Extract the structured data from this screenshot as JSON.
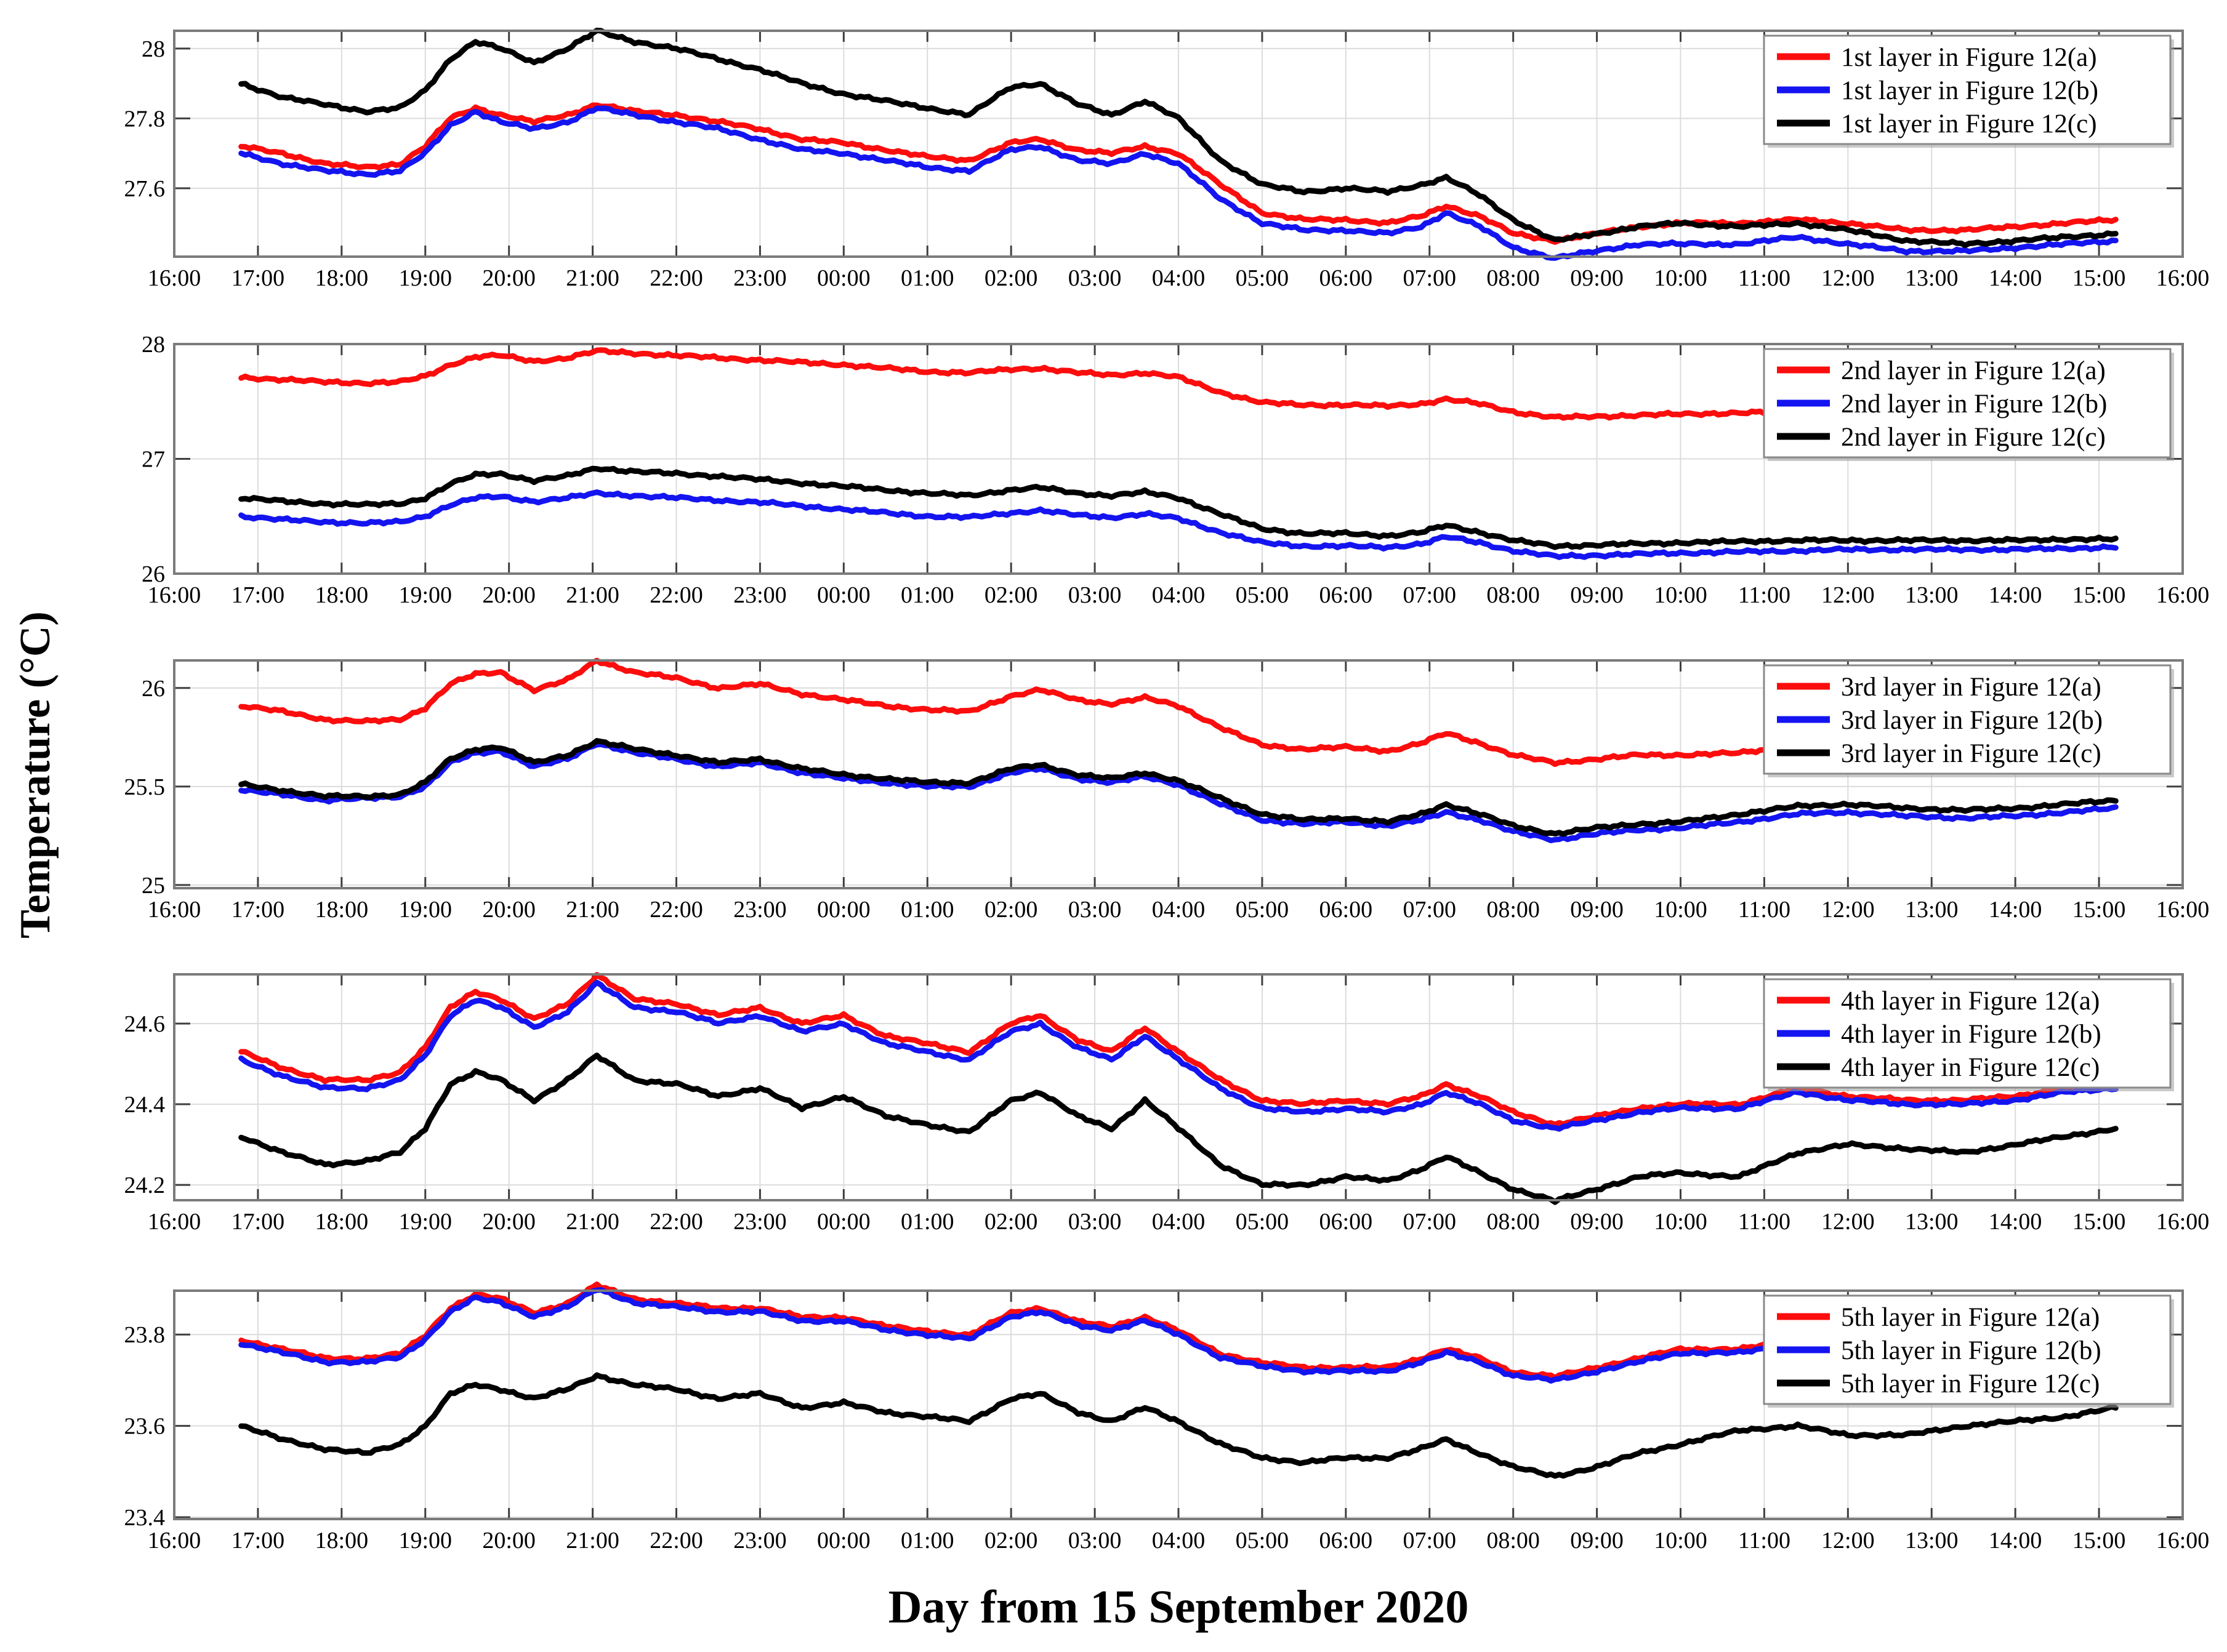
{
  "figure": {
    "ylabel": "Temperature (°C)",
    "xlabel": "Day from 15 September 2020",
    "x_tick_labels": [
      "16:00",
      "17:00",
      "18:00",
      "19:00",
      "20:00",
      "21:00",
      "22:00",
      "23:00",
      "00:00",
      "01:00",
      "02:00",
      "03:00",
      "04:00",
      "05:00",
      "06:00",
      "07:00",
      "08:00",
      "09:00",
      "10:00",
      "11:00",
      "12:00",
      "13:00",
      "14:00",
      "15:00",
      "16:00"
    ],
    "t_hours": [
      0.8,
      1.3,
      1.8,
      2.3,
      2.7,
      3.0,
      3.3,
      3.6,
      3.9,
      4.3,
      4.7,
      5.05,
      5.5,
      6.0,
      6.5,
      7.0,
      7.5,
      8.0,
      8.5,
      9.0,
      9.5,
      10.0,
      10.35,
      10.8,
      11.2,
      11.6,
      12.0,
      12.5,
      13.0,
      13.5,
      14.0,
      14.5,
      14.9,
      15.2,
      15.6,
      16.0,
      16.5,
      17.0,
      17.5,
      18.0,
      18.7,
      19.4,
      20.0,
      20.7,
      21.4,
      22.0,
      22.6,
      23.2
    ],
    "colors": {
      "red": "#fb0d0d",
      "blue": "#1414f0",
      "black": "#000000",
      "grid": "#dcdcdc",
      "axis_border": "#7b7b7b",
      "tick_stub": "#3f3f3f",
      "legend_border": "#8a8a8a",
      "legend_shadow": "#9e9e9e"
    }
  },
  "chart_data": [
    {
      "type": "line",
      "panel": "1st layer",
      "x_unit": "time of day, hourly from 16:00 15 Sep 2020 to 16:00 16 Sep 2020",
      "xlim": [
        0,
        24
      ],
      "ylim": [
        27.404,
        28.051
      ],
      "ytick_values": [
        28,
        27.8,
        27.6
      ],
      "ytick_labels": [
        "28",
        "27.8",
        "27.6"
      ],
      "legend": [
        "1st layer in  Figure 12(a)",
        "1st layer in  Figure 12(b)",
        "1st layer in  Figure 12(c)"
      ],
      "series": [
        {
          "name": "1st layer in Figure 12(a)",
          "color_key": "red",
          "values": [
            27.72,
            27.7,
            27.67,
            27.66,
            27.67,
            27.72,
            27.8,
            27.83,
            27.81,
            27.79,
            27.81,
            27.84,
            27.82,
            27.81,
            27.79,
            27.77,
            27.74,
            27.73,
            27.71,
            27.69,
            27.68,
            27.73,
            27.74,
            27.71,
            27.7,
            27.72,
            27.7,
            27.61,
            27.53,
            27.51,
            27.51,
            27.5,
            27.52,
            27.55,
            27.52,
            27.47,
            27.45,
            27.47,
            27.49,
            27.5,
            27.5,
            27.51,
            27.5,
            27.48,
            27.48,
            27.49,
            27.5,
            27.51
          ]
        },
        {
          "name": "1st layer in Figure 12(b)",
          "color_key": "blue",
          "values": [
            27.7,
            27.67,
            27.65,
            27.64,
            27.65,
            27.7,
            27.78,
            27.82,
            27.79,
            27.77,
            27.79,
            27.83,
            27.81,
            27.79,
            27.77,
            27.74,
            27.71,
            27.7,
            27.68,
            27.66,
            27.65,
            27.71,
            27.72,
            27.68,
            27.67,
            27.7,
            27.67,
            27.57,
            27.5,
            27.48,
            27.48,
            27.47,
            27.49,
            27.53,
            27.49,
            27.43,
            27.4,
            27.42,
            27.44,
            27.44,
            27.44,
            27.46,
            27.44,
            27.42,
            27.42,
            27.43,
            27.44,
            27.45
          ]
        },
        {
          "name": "1st layer in Figure 12(c)",
          "color_key": "black",
          "values": [
            27.9,
            27.86,
            27.84,
            27.82,
            27.83,
            27.88,
            27.97,
            28.02,
            28.0,
            27.96,
            28.0,
            28.05,
            28.02,
            28.0,
            27.97,
            27.94,
            27.9,
            27.87,
            27.85,
            27.83,
            27.81,
            27.89,
            27.9,
            27.84,
            27.81,
            27.85,
            27.8,
            27.68,
            27.61,
            27.59,
            27.6,
            27.59,
            27.61,
            27.63,
            27.58,
            27.51,
            27.45,
            27.47,
            27.49,
            27.5,
            27.49,
            27.5,
            27.48,
            27.45,
            27.44,
            27.45,
            27.46,
            27.47
          ]
        }
      ]
    },
    {
      "type": "line",
      "panel": "2nd layer",
      "x_unit": "time of day, hourly from 16:00 15 Sep 2020 to 16:00 16 Sep 2020",
      "xlim": [
        0,
        24
      ],
      "ylim": [
        26.0,
        28.0
      ],
      "ytick_values": [
        28,
        27,
        26
      ],
      "ytick_labels": [
        "28",
        "27",
        "26"
      ],
      "legend": [
        "2nd layer in  Figure 12(a)",
        "2nd layer in  Figure 12(b)",
        "2nd layer in  Figure 12(c)"
      ],
      "series": [
        {
          "name": "2nd layer in Figure 12(a)",
          "color_key": "red",
          "values": [
            27.71,
            27.69,
            27.67,
            27.66,
            27.67,
            27.72,
            27.82,
            27.89,
            27.9,
            27.85,
            27.88,
            27.94,
            27.92,
            27.9,
            27.88,
            27.86,
            27.84,
            27.82,
            27.79,
            27.76,
            27.75,
            27.78,
            27.79,
            27.75,
            27.73,
            27.75,
            27.71,
            27.58,
            27.49,
            27.47,
            27.47,
            27.46,
            27.48,
            27.52,
            27.48,
            27.41,
            27.36,
            27.37,
            27.38,
            27.39,
            27.4,
            27.41,
            27.42,
            27.42,
            27.43,
            27.43,
            27.44,
            27.44
          ]
        },
        {
          "name": "2nd layer in Figure 12(b)",
          "color_key": "blue",
          "values": [
            26.5,
            26.47,
            26.45,
            26.44,
            26.45,
            26.5,
            26.6,
            26.66,
            26.67,
            26.63,
            26.66,
            26.7,
            26.68,
            26.66,
            26.64,
            26.62,
            26.59,
            26.56,
            26.53,
            26.5,
            26.49,
            26.53,
            26.55,
            26.51,
            26.49,
            26.52,
            26.48,
            26.36,
            26.27,
            26.24,
            26.24,
            26.23,
            26.26,
            26.32,
            26.27,
            26.2,
            26.15,
            26.16,
            26.17,
            26.18,
            26.19,
            26.2,
            26.21,
            26.21,
            26.21,
            26.21,
            26.22,
            26.23
          ]
        },
        {
          "name": "2nd layer in Figure 12(c)",
          "color_key": "black",
          "values": [
            26.66,
            26.63,
            26.61,
            26.6,
            26.61,
            26.66,
            26.78,
            26.86,
            26.87,
            26.81,
            26.85,
            26.92,
            26.89,
            26.87,
            26.85,
            26.82,
            26.79,
            26.76,
            26.73,
            26.7,
            26.68,
            26.73,
            26.75,
            26.7,
            26.68,
            26.71,
            26.66,
            26.52,
            26.39,
            26.35,
            26.35,
            26.33,
            26.36,
            26.42,
            26.36,
            26.29,
            26.24,
            26.25,
            26.26,
            26.27,
            26.28,
            26.29,
            26.29,
            26.29,
            26.29,
            26.29,
            26.3,
            26.3
          ]
        }
      ]
    },
    {
      "type": "line",
      "panel": "3rd layer",
      "x_unit": "time of day, hourly from 16:00 15 Sep 2020 to 16:00 16 Sep 2020",
      "xlim": [
        0,
        24
      ],
      "ylim": [
        24.984,
        26.14
      ],
      "ytick_values": [
        26,
        25.5,
        25
      ],
      "ytick_labels": [
        "26",
        "25.5",
        "25"
      ],
      "legend": [
        "3rd layer in  Figure 12(a)",
        "3rd layer in  Figure 12(b)",
        "3rd layer in  Figure 12(c)"
      ],
      "series": [
        {
          "name": "3rd layer in Figure 12(a)",
          "color_key": "red",
          "values": [
            25.91,
            25.88,
            25.84,
            25.83,
            25.84,
            25.9,
            26.02,
            26.07,
            26.08,
            25.99,
            26.04,
            26.14,
            26.08,
            26.05,
            26.0,
            26.02,
            25.97,
            25.94,
            25.91,
            25.89,
            25.88,
            25.96,
            25.99,
            25.94,
            25.92,
            25.95,
            25.91,
            25.8,
            25.71,
            25.69,
            25.7,
            25.68,
            25.72,
            25.77,
            25.72,
            25.66,
            25.62,
            25.64,
            25.66,
            25.66,
            25.67,
            25.71,
            25.73,
            25.74,
            25.73,
            25.73,
            25.74,
            25.74
          ]
        },
        {
          "name": "3rd layer in Figure 12(b)",
          "color_key": "blue",
          "values": [
            25.48,
            25.46,
            25.43,
            25.44,
            25.45,
            25.5,
            25.62,
            25.67,
            25.68,
            25.6,
            25.64,
            25.72,
            25.67,
            25.64,
            25.6,
            25.62,
            25.57,
            25.54,
            25.52,
            25.5,
            25.5,
            25.57,
            25.59,
            25.54,
            25.52,
            25.55,
            25.51,
            25.41,
            25.33,
            25.31,
            25.32,
            25.3,
            25.33,
            25.37,
            25.33,
            25.27,
            25.23,
            25.26,
            25.28,
            25.29,
            25.32,
            25.36,
            25.37,
            25.35,
            25.34,
            25.35,
            25.37,
            25.39
          ]
        },
        {
          "name": "3rd layer in Figure 12(c)",
          "color_key": "black",
          "values": [
            25.51,
            25.48,
            25.45,
            25.45,
            25.46,
            25.52,
            25.64,
            25.69,
            25.7,
            25.62,
            25.66,
            25.73,
            25.69,
            25.66,
            25.62,
            25.64,
            25.59,
            25.56,
            25.54,
            25.52,
            25.52,
            25.59,
            25.61,
            25.56,
            25.54,
            25.57,
            25.53,
            25.44,
            25.36,
            25.33,
            25.34,
            25.32,
            25.36,
            25.41,
            25.36,
            25.3,
            25.26,
            25.29,
            25.31,
            25.32,
            25.36,
            25.4,
            25.41,
            25.39,
            25.38,
            25.39,
            25.41,
            25.43
          ]
        }
      ]
    },
    {
      "type": "line",
      "panel": "4th layer",
      "x_unit": "time of day, hourly from 16:00 15 Sep 2020 to 16:00 16 Sep 2020",
      "xlim": [
        0,
        24
      ],
      "ylim": [
        24.162,
        24.722
      ],
      "ytick_values": [
        24.6,
        24.4,
        24.2
      ],
      "ytick_labels": [
        "24.6",
        "24.4",
        "24.2"
      ],
      "legend": [
        "4th layer in  Figure 12(a)",
        "4th layer in  Figure 12(b)",
        "4th layer in  Figure 12(c)"
      ],
      "series": [
        {
          "name": "4th layer in Figure 12(a)",
          "color_key": "red",
          "values": [
            24.53,
            24.49,
            24.46,
            24.46,
            24.48,
            24.54,
            24.64,
            24.68,
            24.66,
            24.61,
            24.65,
            24.72,
            24.66,
            24.65,
            24.62,
            24.64,
            24.6,
            24.62,
            24.57,
            24.55,
            24.53,
            24.6,
            24.62,
            24.56,
            24.53,
            24.59,
            24.53,
            24.46,
            24.41,
            24.4,
            24.41,
            24.4,
            24.42,
            24.45,
            24.42,
            24.38,
            24.35,
            24.37,
            24.39,
            24.4,
            24.4,
            24.44,
            24.42,
            24.41,
            24.41,
            24.42,
            24.44,
            24.45
          ]
        },
        {
          "name": "4th layer in Figure 12(b)",
          "color_key": "blue",
          "values": [
            24.51,
            24.47,
            24.44,
            24.44,
            24.46,
            24.52,
            24.62,
            24.66,
            24.64,
            24.59,
            24.63,
            24.7,
            24.64,
            24.63,
            24.6,
            24.62,
            24.58,
            24.6,
            24.55,
            24.53,
            24.51,
            24.58,
            24.6,
            24.54,
            24.51,
            24.57,
            24.51,
            24.44,
            24.39,
            24.38,
            24.39,
            24.38,
            24.4,
            24.43,
            24.4,
            24.36,
            24.34,
            24.36,
            24.38,
            24.39,
            24.39,
            24.43,
            24.41,
            24.4,
            24.4,
            24.41,
            24.43,
            24.44
          ]
        },
        {
          "name": "4th layer in Figure 12(c)",
          "color_key": "black",
          "values": [
            24.32,
            24.28,
            24.25,
            24.26,
            24.28,
            24.34,
            24.45,
            24.48,
            24.46,
            24.41,
            24.46,
            24.52,
            24.46,
            24.45,
            24.42,
            24.44,
            24.39,
            24.42,
            24.37,
            24.35,
            24.33,
            24.41,
            24.43,
            24.37,
            24.34,
            24.41,
            24.34,
            24.25,
            24.2,
            24.2,
            24.22,
            24.21,
            24.24,
            24.27,
            24.23,
            24.19,
            24.16,
            24.19,
            24.22,
            24.23,
            24.22,
            24.28,
            24.3,
            24.29,
            24.28,
            24.3,
            24.32,
            24.34
          ]
        }
      ]
    },
    {
      "type": "line",
      "panel": "5th layer",
      "x_unit": "time of day, hourly from 16:00 15 Sep 2020 to 16:00 16 Sep 2020",
      "xlim": [
        0,
        24
      ],
      "ylim": [
        23.396,
        23.896
      ],
      "ytick_values": [
        23.8,
        23.6,
        23.4
      ],
      "ytick_labels": [
        "23.8",
        "23.6",
        "23.4"
      ],
      "legend": [
        "5th layer in Figure 12(a)",
        "5th layer in Figure 12(b)",
        "5th layer in Figure 12(c)"
      ],
      "series": [
        {
          "name": "5th layer in Figure 12(a)",
          "color_key": "red",
          "values": [
            23.788,
            23.768,
            23.748,
            23.748,
            23.758,
            23.798,
            23.858,
            23.888,
            23.878,
            23.848,
            23.868,
            23.908,
            23.878,
            23.868,
            23.858,
            23.858,
            23.838,
            23.838,
            23.818,
            23.808,
            23.798,
            23.848,
            23.858,
            23.828,
            23.818,
            23.838,
            23.808,
            23.758,
            23.738,
            23.728,
            23.728,
            23.728,
            23.748,
            23.768,
            23.748,
            23.718,
            23.708,
            23.728,
            23.748,
            23.768,
            23.768,
            23.788,
            23.788,
            23.778,
            23.778,
            23.778,
            23.788,
            23.788
          ]
        },
        {
          "name": "5th layer in Figure 12(b)",
          "color_key": "blue",
          "values": [
            23.78,
            23.76,
            23.74,
            23.74,
            23.75,
            23.79,
            23.85,
            23.88,
            23.87,
            23.84,
            23.86,
            23.9,
            23.87,
            23.86,
            23.85,
            23.85,
            23.83,
            23.83,
            23.81,
            23.8,
            23.79,
            23.84,
            23.85,
            23.82,
            23.81,
            23.83,
            23.8,
            23.75,
            23.73,
            23.72,
            23.72,
            23.72,
            23.74,
            23.76,
            23.74,
            23.71,
            23.7,
            23.72,
            23.74,
            23.76,
            23.76,
            23.78,
            23.78,
            23.77,
            23.77,
            23.77,
            23.78,
            23.78
          ]
        },
        {
          "name": "5th layer in Figure 12(c)",
          "color_key": "black",
          "values": [
            23.6,
            23.57,
            23.55,
            23.54,
            23.56,
            23.6,
            23.67,
            23.69,
            23.68,
            23.66,
            23.68,
            23.71,
            23.69,
            23.68,
            23.66,
            23.67,
            23.64,
            23.65,
            23.63,
            23.62,
            23.61,
            23.66,
            23.67,
            23.63,
            23.61,
            23.64,
            23.61,
            23.56,
            23.53,
            23.52,
            23.53,
            23.53,
            23.55,
            23.57,
            23.54,
            23.51,
            23.49,
            23.51,
            23.54,
            23.56,
            23.59,
            23.6,
            23.58,
            23.58,
            23.6,
            23.61,
            23.62,
            23.64
          ]
        }
      ]
    }
  ]
}
